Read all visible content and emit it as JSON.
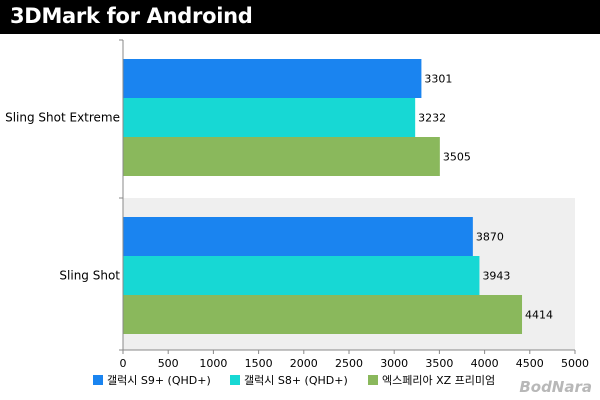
{
  "header": {
    "title": "3DMark for Androind"
  },
  "watermark": "BodNara",
  "chart_data": {
    "type": "bar",
    "orientation": "horizontal",
    "title": "3DMark for Androind",
    "categories": [
      "Sling Shot Extreme",
      "Sling Shot"
    ],
    "series": [
      {
        "name": "갤럭시 S9+ (QHD+)",
        "color": "#1a84f0",
        "values": [
          3301,
          3870
        ]
      },
      {
        "name": "갤럭시 S8+ (QHD+)",
        "color": "#17d8d4",
        "values": [
          3232,
          3943
        ]
      },
      {
        "name": "엑스페리아 XZ 프리미엄",
        "color": "#8ab85c",
        "values": [
          3505,
          4414
        ]
      }
    ],
    "xlim": [
      0,
      5000
    ],
    "xticks": [
      0,
      500,
      1000,
      1500,
      2000,
      2500,
      3000,
      3500,
      4000,
      4500,
      5000
    ],
    "grid": false,
    "legend": "bottom"
  }
}
